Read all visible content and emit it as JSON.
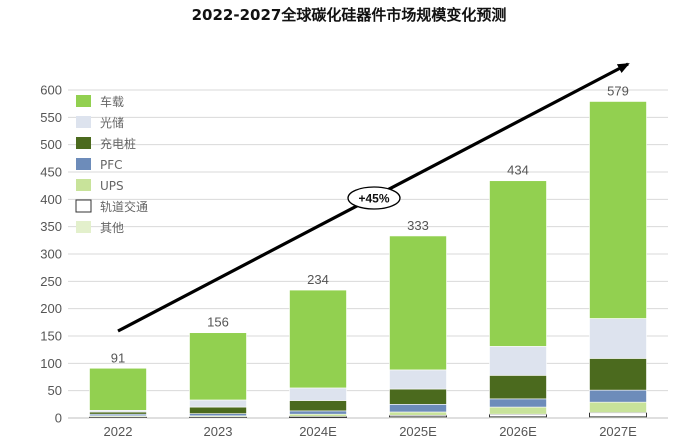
{
  "chart_data": {
    "type": "bar",
    "stacked": true,
    "title": "2022-2027全球碳化硅器件市场规模变化预测",
    "xlabel": "",
    "ylabel": "",
    "ylim": [
      0,
      600
    ],
    "yticks": [
      0,
      50,
      100,
      150,
      200,
      250,
      300,
      350,
      400,
      450,
      500,
      550,
      600
    ],
    "grid": true,
    "legend_position": "top-left",
    "categories": [
      "2022",
      "2023",
      "2024E",
      "2025E",
      "2026E",
      "2027E"
    ],
    "totals": [
      91,
      156,
      234,
      333,
      434,
      579
    ],
    "series": [
      {
        "name": "其他",
        "color": "#e3f0cc",
        "values": [
          1,
          1,
          1,
          2,
          2,
          2
        ]
      },
      {
        "name": "轨道交通",
        "color": "#ffffff",
        "values": [
          1,
          1,
          2,
          3,
          5,
          8
        ]
      },
      {
        "name": "UPS",
        "color": "#c8e39a",
        "values": [
          2,
          2,
          4,
          6,
          13,
          19
        ]
      },
      {
        "name": "PFC",
        "color": "#6d8cba",
        "values": [
          3,
          4,
          6,
          14,
          15,
          22
        ]
      },
      {
        "name": "充电桩",
        "color": "#4b6a1e",
        "values": [
          4,
          12,
          19,
          28,
          43,
          58
        ]
      },
      {
        "name": "光储",
        "color": "#dde3ee",
        "values": [
          3,
          13,
          23,
          35,
          53,
          73
        ]
      },
      {
        "name": "车载",
        "color": "#92d050",
        "values": [
          77,
          123,
          179,
          245,
          303,
          397
        ]
      }
    ],
    "legend_order": [
      "车载",
      "光储",
      "充电桩",
      "PFC",
      "UPS",
      "轨道交通",
      "其他"
    ],
    "annotations": [
      {
        "type": "trend-arrow",
        "label": "+45%"
      }
    ]
  }
}
